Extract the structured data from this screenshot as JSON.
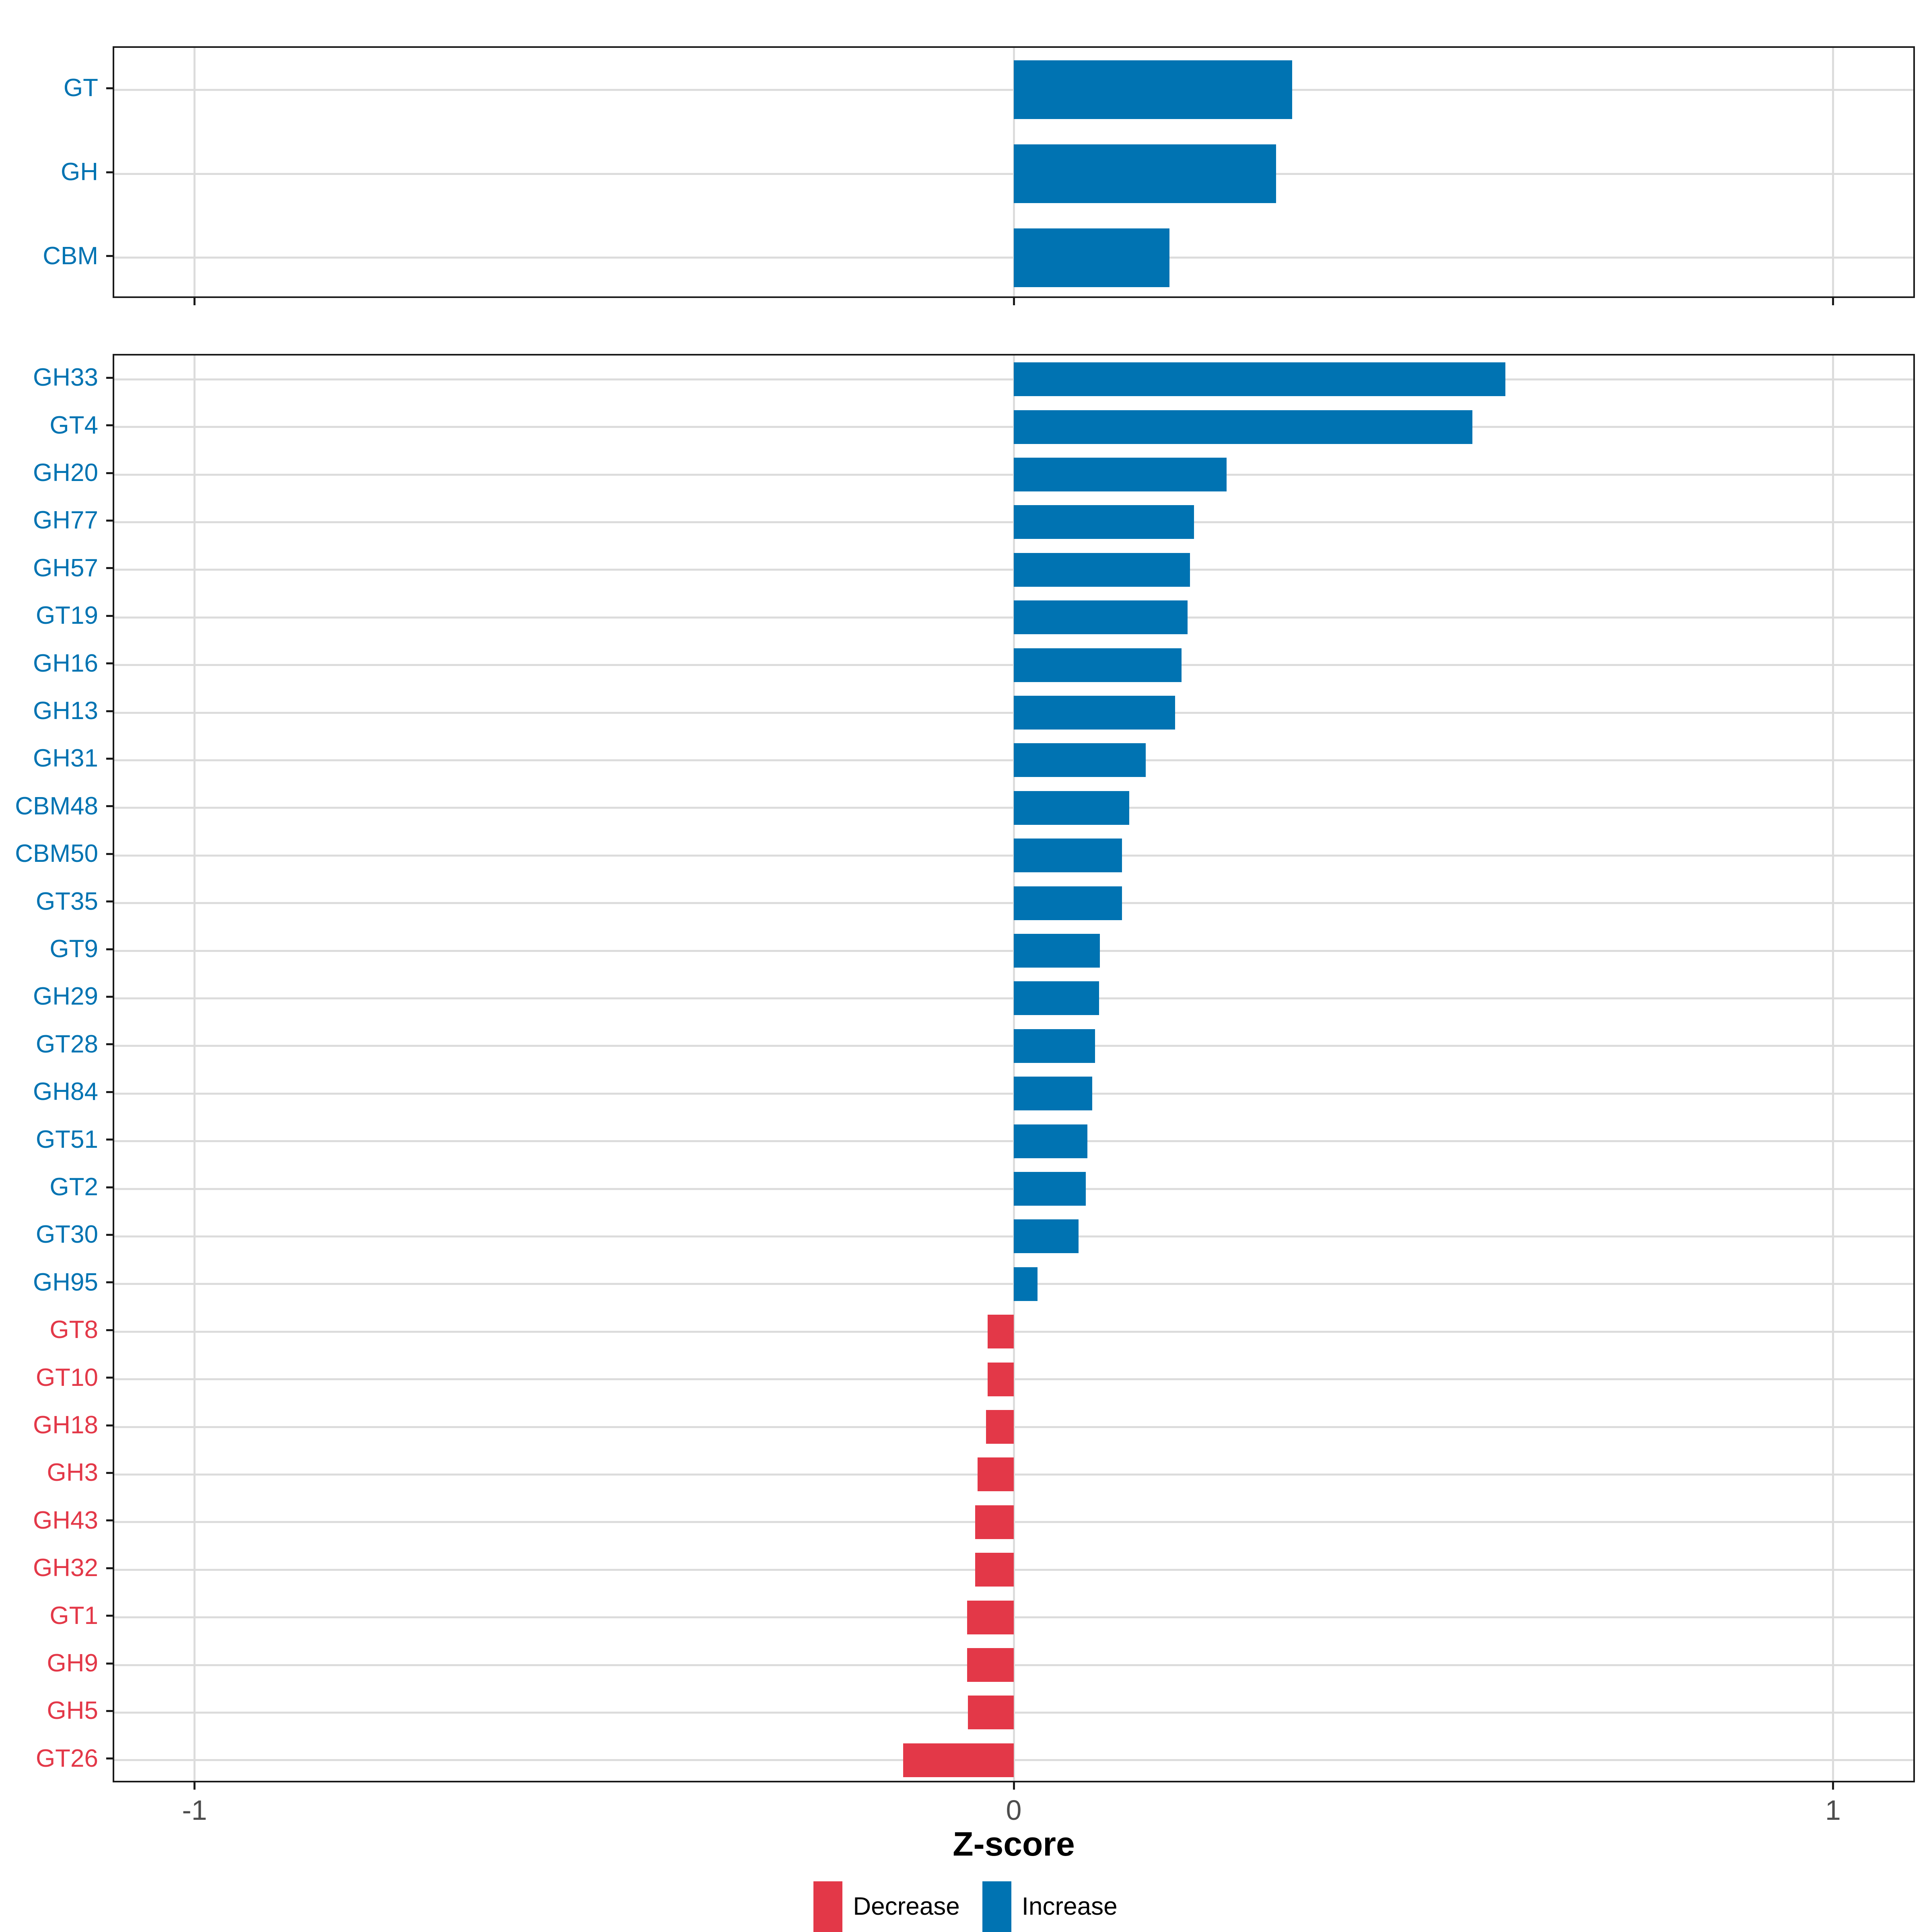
{
  "axis": {
    "xlabel": "Z-score",
    "tick_labels": [
      "-1",
      "0",
      "1"
    ],
    "tick_values": [
      -1,
      0,
      1
    ],
    "xlim": [
      -1.1,
      1.1
    ]
  },
  "legend": {
    "items": [
      {
        "label": "Decrease",
        "color": "#E33848"
      },
      {
        "label": "Increase",
        "color": "#0073B2"
      }
    ]
  },
  "colors": {
    "increase": "#0073B2",
    "decrease": "#E33848",
    "gridline": "#DCDCDC",
    "panel_border": "#1A1A1A",
    "tick_text": "#4D4D4D"
  },
  "chart_data": [
    {
      "type": "bar",
      "orientation": "horizontal",
      "panel": "class-summary",
      "xlabel": "Z-score",
      "xlim": [
        -1.1,
        1.1
      ],
      "grid": true,
      "legend_position": "bottom",
      "categories": [
        "GT",
        "GH",
        "CBM"
      ],
      "values": [
        0.34,
        0.32,
        0.19
      ],
      "direction": [
        "Increase",
        "Increase",
        "Increase"
      ]
    },
    {
      "type": "bar",
      "orientation": "horizontal",
      "panel": "family-detail",
      "xlabel": "Z-score",
      "xlim": [
        -1.1,
        1.1
      ],
      "grid": true,
      "legend_position": "bottom",
      "categories": [
        "GH33",
        "GT4",
        "GH20",
        "GH77",
        "GH57",
        "GT19",
        "GH16",
        "GH13",
        "GH31",
        "CBM48",
        "CBM50",
        "GT35",
        "GT9",
        "GH29",
        "GT28",
        "GH84",
        "GT51",
        "GT2",
        "GT30",
        "GH95",
        "GT8",
        "GT10",
        "GH18",
        "GH3",
        "GH43",
        "GH32",
        "GT1",
        "GH9",
        "GH5",
        "GT26"
      ],
      "values": [
        0.6,
        0.56,
        0.26,
        0.22,
        0.215,
        0.212,
        0.205,
        0.197,
        0.161,
        0.141,
        0.132,
        0.132,
        0.105,
        0.104,
        0.099,
        0.096,
        0.09,
        0.088,
        0.079,
        0.029,
        -0.032,
        -0.032,
        -0.034,
        -0.044,
        -0.047,
        -0.047,
        -0.057,
        -0.057,
        -0.056,
        -0.135
      ],
      "direction": [
        "Increase",
        "Increase",
        "Increase",
        "Increase",
        "Increase",
        "Increase",
        "Increase",
        "Increase",
        "Increase",
        "Increase",
        "Increase",
        "Increase",
        "Increase",
        "Increase",
        "Increase",
        "Increase",
        "Increase",
        "Increase",
        "Increase",
        "Increase",
        "Decrease",
        "Decrease",
        "Decrease",
        "Decrease",
        "Decrease",
        "Decrease",
        "Decrease",
        "Decrease",
        "Decrease",
        "Decrease"
      ]
    }
  ]
}
